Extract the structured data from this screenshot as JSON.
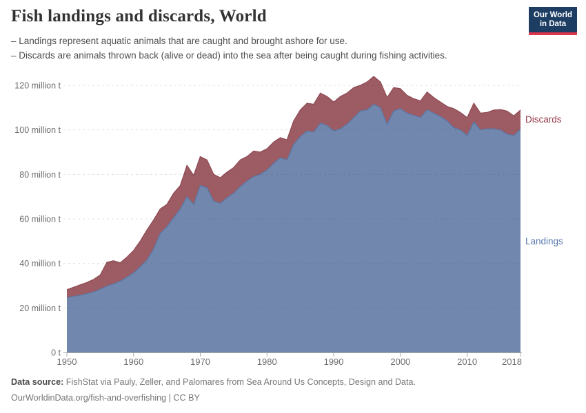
{
  "header": {
    "title": "Fish landings and discards, World",
    "subtitle_lines": [
      "– Landings represent aquatic animals that are caught and brought ashore for use.",
      "– Discards are animals thrown back (alive or dead) into the sea after being caught during fishing activities."
    ],
    "logo": {
      "line1": "Our World",
      "line2": "in Data",
      "bg_color": "#1d3d63",
      "bar_color": "#dc354c"
    }
  },
  "chart_data": {
    "type": "area",
    "stacked": true,
    "title": "Fish landings and discards, World",
    "unit": "million t",
    "grid": "dashed-horizontal",
    "legend_position": "right-edge-labels",
    "ylim": [
      0,
      130
    ],
    "x": [
      1950,
      1951,
      1952,
      1953,
      1954,
      1955,
      1956,
      1957,
      1958,
      1959,
      1960,
      1961,
      1962,
      1963,
      1964,
      1965,
      1966,
      1967,
      1968,
      1969,
      1970,
      1971,
      1972,
      1973,
      1974,
      1975,
      1976,
      1977,
      1978,
      1979,
      1980,
      1981,
      1982,
      1983,
      1984,
      1985,
      1986,
      1987,
      1988,
      1989,
      1990,
      1991,
      1992,
      1993,
      1994,
      1995,
      1996,
      1997,
      1998,
      1999,
      2000,
      2001,
      2002,
      2003,
      2004,
      2005,
      2006,
      2007,
      2008,
      2009,
      2010,
      2011,
      2012,
      2013,
      2014,
      2015,
      2016,
      2017,
      2018
    ],
    "series": [
      {
        "name": "Landings",
        "color": "#7187ae",
        "line_color": "#5c76a4",
        "label_color": "#5878ab",
        "values": [
          24.6,
          25.2,
          25.7,
          26.4,
          27.2,
          28.4,
          29.8,
          30.8,
          32.0,
          33.8,
          35.8,
          38.5,
          41.5,
          46.5,
          53.5,
          56.5,
          60.5,
          64.5,
          70.0,
          66.5,
          75.0,
          74.0,
          68.0,
          67.0,
          69.5,
          71.5,
          74.5,
          77.0,
          79.0,
          80.0,
          82.0,
          85.0,
          87.5,
          86.5,
          93.5,
          97.0,
          99.5,
          99.0,
          103.0,
          102.0,
          99.5,
          100.5,
          102.5,
          105.5,
          108.5,
          109.0,
          111.5,
          110.0,
          102.5,
          108.5,
          109.5,
          107.5,
          106.5,
          105.5,
          109.0,
          107.5,
          106.0,
          104.0,
          101.0,
          100.0,
          97.5,
          103.5,
          100.0,
          100.5,
          100.5,
          100.0,
          98.0,
          97.5,
          100.3
        ]
      },
      {
        "name": "Discards",
        "color": "#9d5c63",
        "line_color": "#8f4b55",
        "label_color": "#963a4e",
        "values": [
          3.6,
          4.1,
          4.7,
          5.0,
          5.6,
          6.4,
          10.7,
          10.4,
          8.3,
          9.0,
          10.0,
          11.5,
          13.5,
          13.0,
          11.0,
          10.0,
          11.0,
          10.5,
          14.0,
          13.0,
          13.0,
          12.5,
          12.0,
          11.5,
          11.5,
          11.5,
          12.0,
          11.0,
          11.5,
          10.0,
          9.5,
          9.5,
          9.0,
          9.0,
          10.5,
          12.0,
          12.5,
          12.5,
          13.5,
          13.0,
          13.0,
          14.5,
          14.0,
          13.5,
          11.5,
          12.5,
          12.5,
          11.5,
          12.0,
          10.5,
          9.0,
          8.0,
          7.5,
          7.5,
          8.0,
          7.0,
          6.5,
          6.5,
          8.5,
          7.8,
          8.0,
          8.5,
          7.5,
          7.3,
          8.4,
          9.1,
          10.4,
          8.8,
          8.6
        ]
      }
    ],
    "y_ticks": [
      {
        "value": 0,
        "label": "0 t"
      },
      {
        "value": 20,
        "label": "20 million t"
      },
      {
        "value": 40,
        "label": "40 million t"
      },
      {
        "value": 60,
        "label": "60 million t"
      },
      {
        "value": 80,
        "label": "80 million t"
      },
      {
        "value": 100,
        "label": "100 million t"
      },
      {
        "value": 120,
        "label": "120 million t"
      }
    ],
    "x_ticks": [
      1950,
      1960,
      1970,
      1980,
      1990,
      2000,
      2010,
      2018
    ]
  },
  "footer": {
    "source_label": "Data source:",
    "source_text": " FishStat via Pauly, Zeller, and Palomares from Sea Around Us Concepts, Design and Data.",
    "url": "OurWorldinData.org/fish-and-overfishing",
    "license": " | CC BY"
  }
}
